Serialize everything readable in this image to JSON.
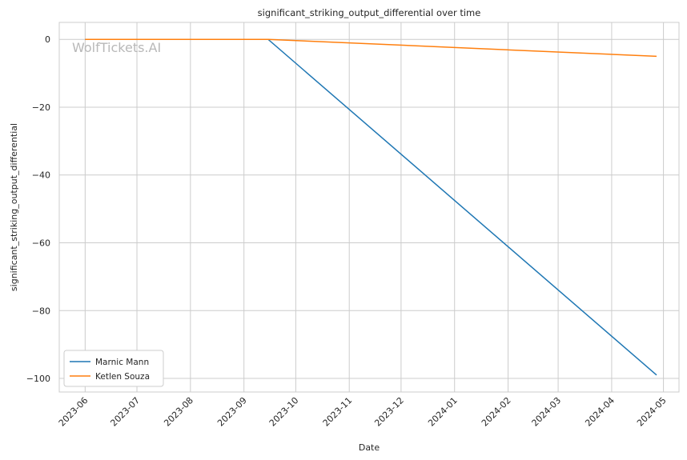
{
  "chart_data": {
    "type": "line",
    "title": "significant_striking_output_differential over time",
    "xlabel": "Date",
    "ylabel": "significant_striking_output_differential",
    "x_ticks": [
      "2023-06",
      "2023-07",
      "2023-08",
      "2023-09",
      "2023-10",
      "2023-11",
      "2023-12",
      "2024-01",
      "2024-02",
      "2024-03",
      "2024-04",
      "2024-05"
    ],
    "y_ticks": [
      0,
      -20,
      -40,
      -60,
      -80,
      -100
    ],
    "xlim": [
      "2023-05-17",
      "2024-05-10"
    ],
    "ylim": [
      -104,
      5
    ],
    "grid": true,
    "legend_position": "lower-left",
    "watermark": "WolfTickets.AI",
    "series": [
      {
        "name": "Marnic Mann",
        "color": "#1f77b4",
        "points": [
          {
            "x": "2023-06-01",
            "y": 0
          },
          {
            "x": "2023-09-15",
            "y": 0
          },
          {
            "x": "2024-04-27",
            "y": -99
          }
        ]
      },
      {
        "name": "Ketlen Souza",
        "color": "#ff7f0e",
        "points": [
          {
            "x": "2023-06-01",
            "y": 0
          },
          {
            "x": "2023-09-15",
            "y": 0
          },
          {
            "x": "2024-04-27",
            "y": -5
          }
        ]
      }
    ]
  }
}
